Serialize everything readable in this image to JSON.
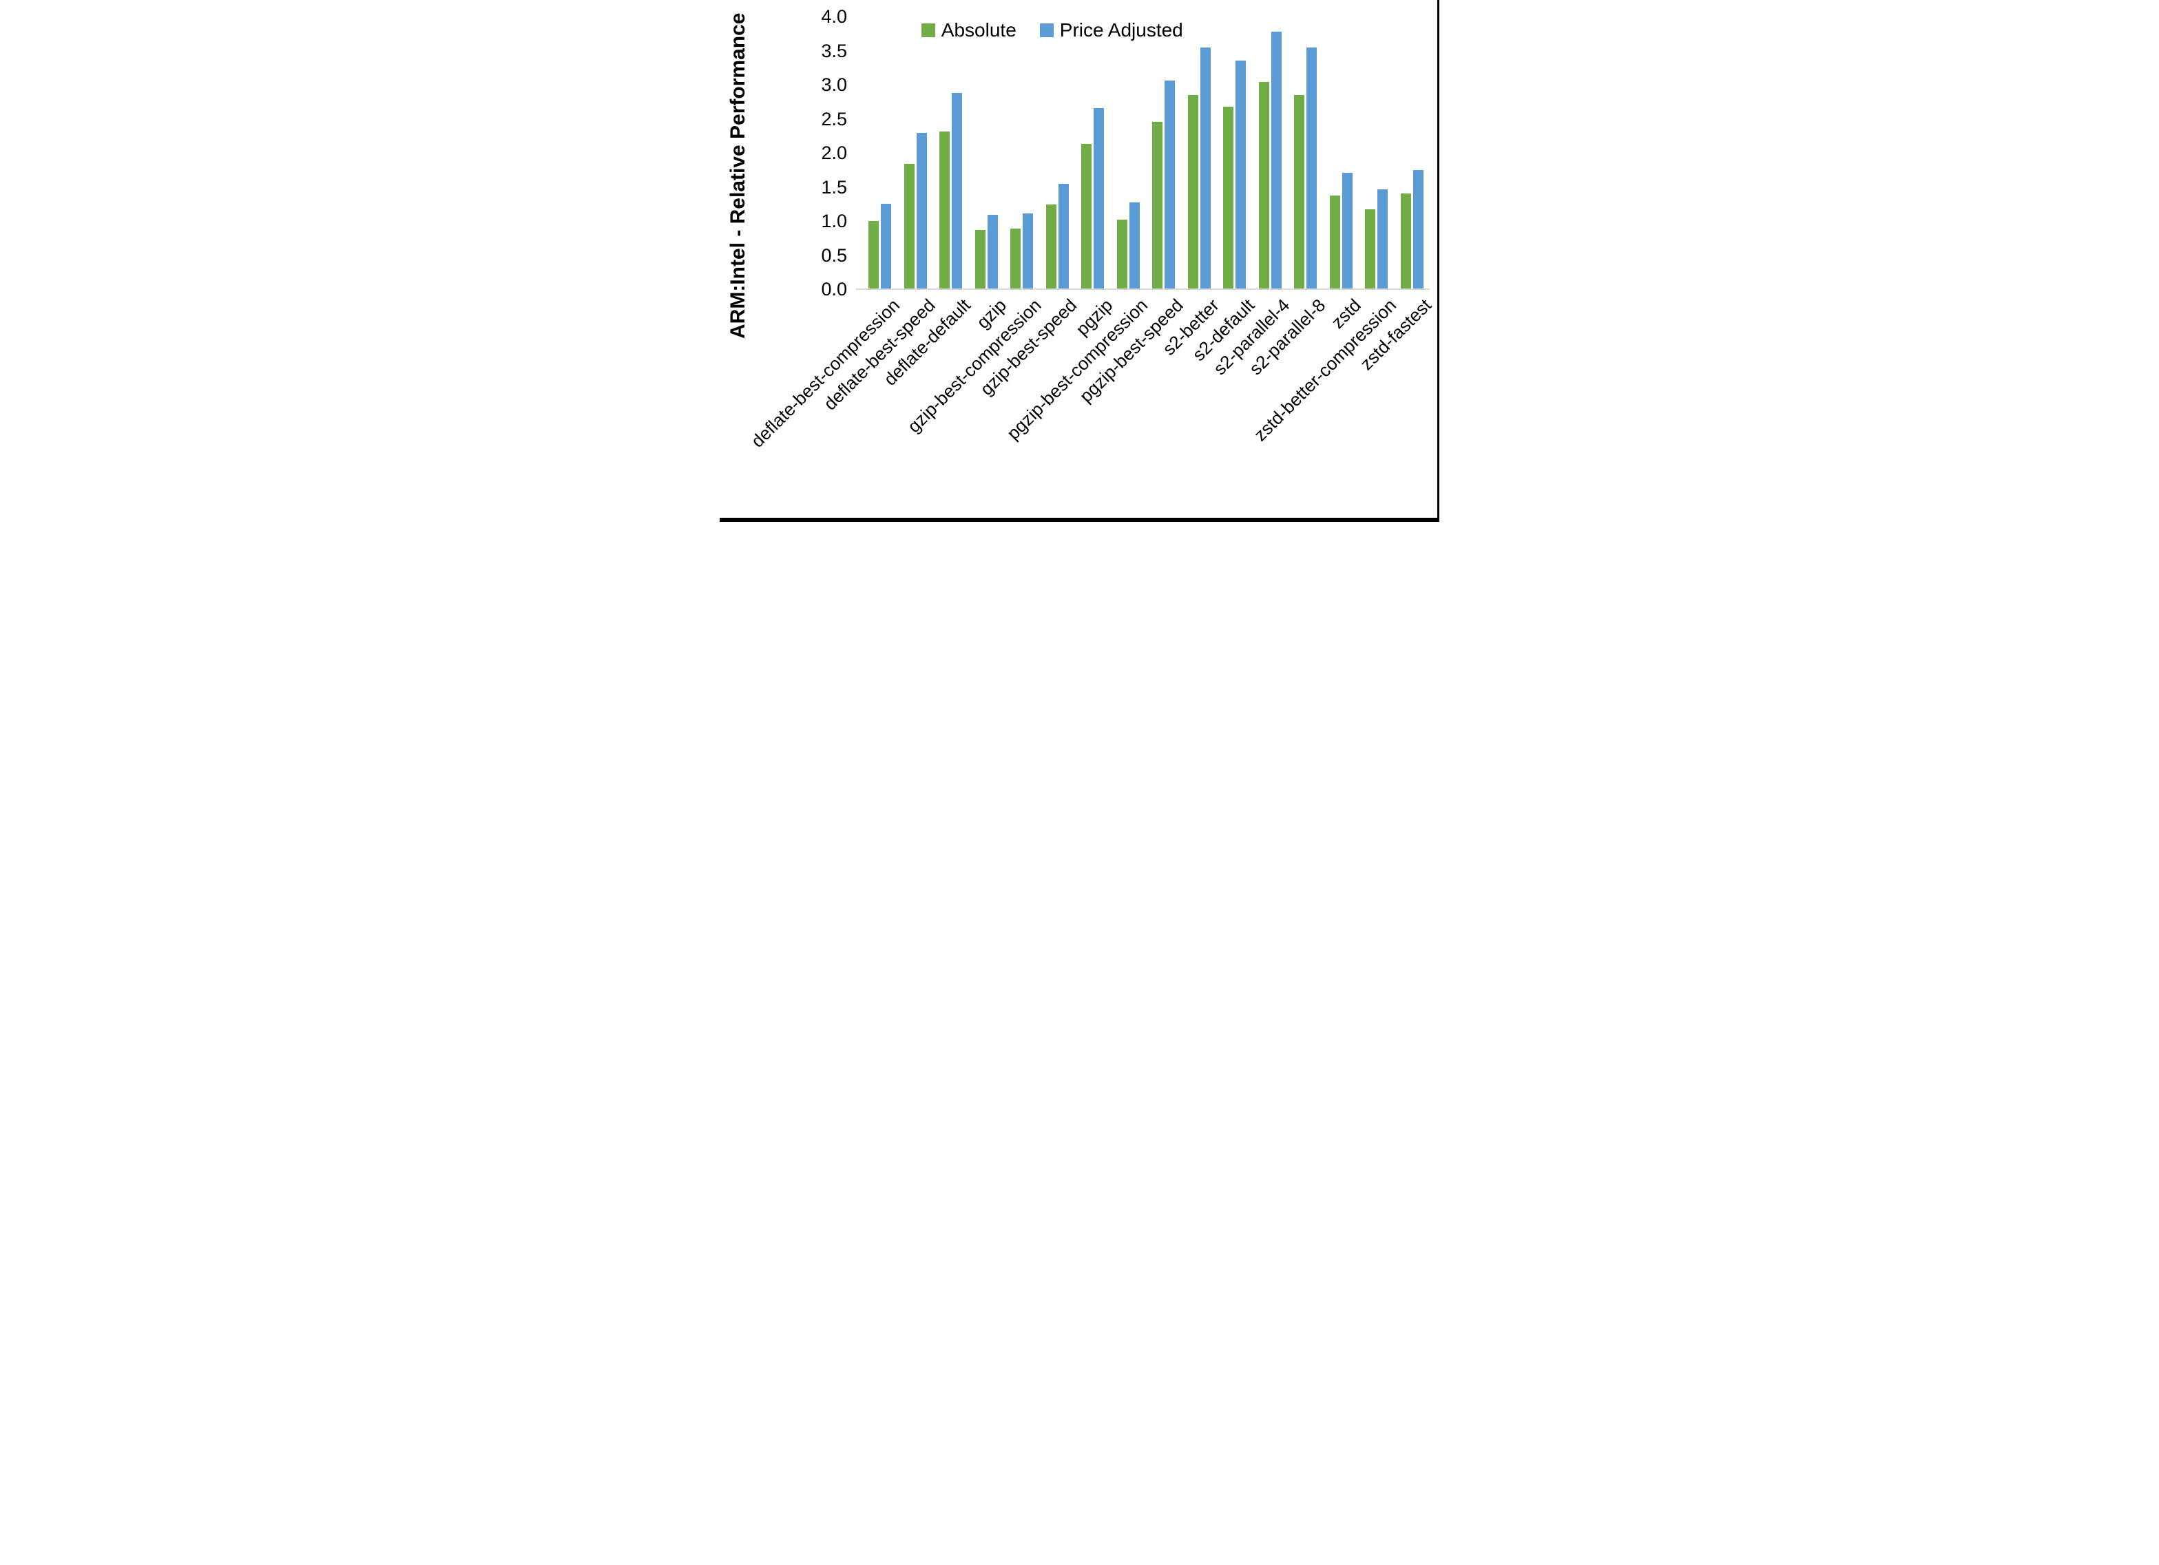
{
  "figure": {
    "background_color": "#ffffff",
    "frame_color": "#000000"
  },
  "legend": {
    "position": "top-center",
    "items": [
      {
        "label": "Absolute",
        "color": "#70AD47"
      },
      {
        "label": "Price Adjusted",
        "color": "#5B9BD5"
      }
    ]
  },
  "chart_data": {
    "type": "bar",
    "title": "",
    "xlabel": "",
    "ylabel": "ARM:Intel - Relative Performance",
    "ylim": [
      0.0,
      4.0
    ],
    "ytick_step": 0.5,
    "yticks": [
      "4.0",
      "3.5",
      "3.0",
      "2.5",
      "2.0",
      "1.5",
      "1.0",
      "0.5",
      "0.0"
    ],
    "grid": false,
    "axis_line_color": "#D9D9D9",
    "legend_position": "top-center",
    "x_label_rotation_deg": 45,
    "categories": [
      "deflate-best-compression",
      "deflate-best-speed",
      "deflate-default",
      "gzip",
      "gzip-best-compression",
      "gzip-best-speed",
      "pgzip",
      "pgzip-best-compression",
      "pgzip-best-speed",
      "s2-better",
      "s2-default",
      "s2-parallel-4",
      "s2-parallel-8",
      "zstd",
      "zstd-better-compression",
      "zstd-fastest"
    ],
    "series": [
      {
        "name": "Absolute",
        "color": "#70AD47",
        "values": [
          1.0,
          1.84,
          2.31,
          0.87,
          0.89,
          1.24,
          2.13,
          1.02,
          2.45,
          2.85,
          2.68,
          3.04,
          2.85,
          1.37,
          1.17,
          1.4
        ]
      },
      {
        "name": "Price Adjusted",
        "color": "#5B9BD5",
        "values": [
          1.25,
          2.29,
          2.88,
          1.09,
          1.11,
          1.55,
          2.66,
          1.27,
          3.06,
          3.55,
          3.35,
          3.78,
          3.55,
          1.71,
          1.46,
          1.75
        ]
      }
    ]
  }
}
